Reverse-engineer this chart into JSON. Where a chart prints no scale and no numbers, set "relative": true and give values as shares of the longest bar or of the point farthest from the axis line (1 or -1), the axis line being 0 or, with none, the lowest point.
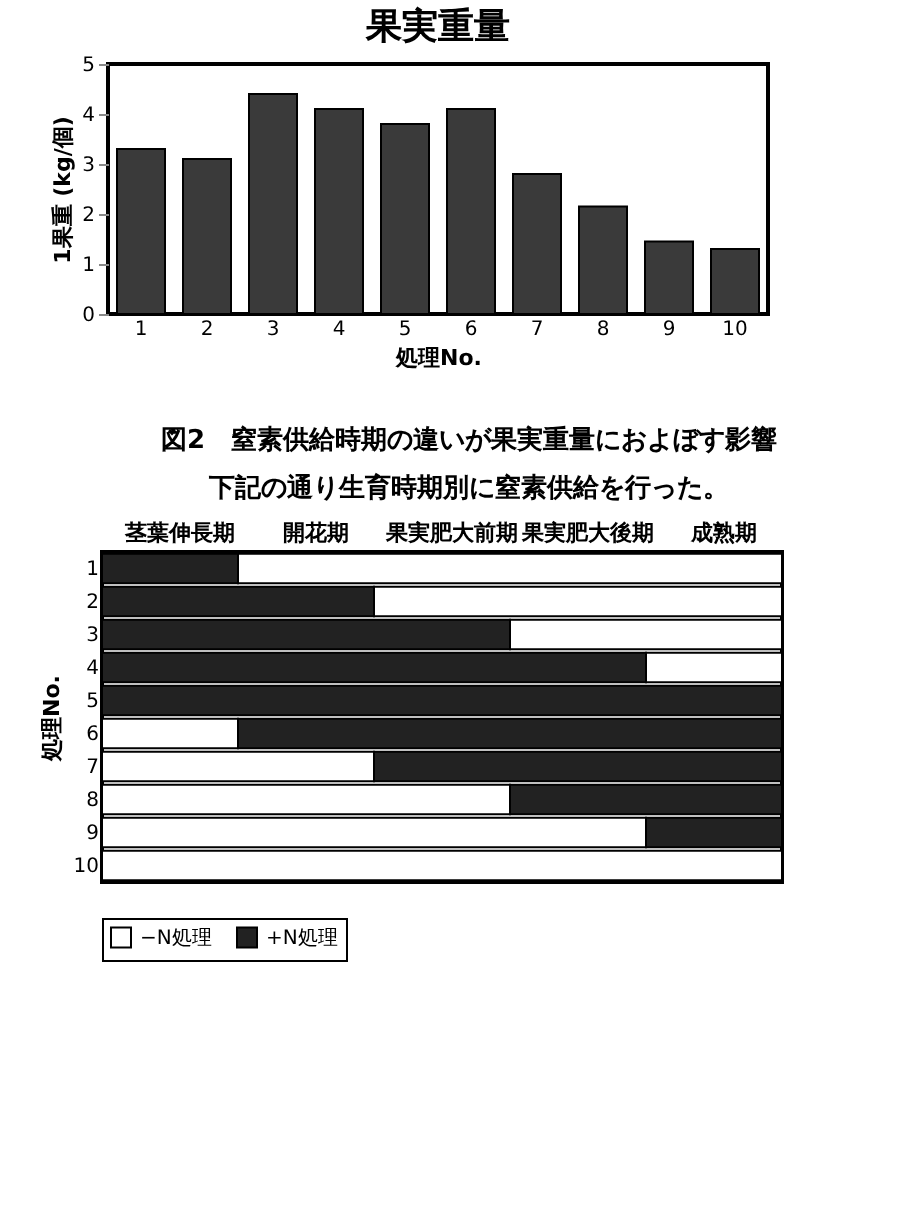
{
  "chart_data": [
    {
      "type": "bar",
      "title": "果実重量",
      "xlabel": "処理No.",
      "ylabel": "1果重 (kg/個)",
      "categories": [
        "1",
        "2",
        "3",
        "4",
        "5",
        "6",
        "7",
        "8",
        "9",
        "10"
      ],
      "values": [
        3.3,
        3.1,
        4.4,
        4.1,
        3.8,
        4.1,
        2.8,
        2.15,
        1.45,
        1.3
      ],
      "color": "#3a3a3a",
      "ylim": [
        0,
        5
      ],
      "yticks": [
        0,
        1,
        2,
        3,
        4,
        5
      ],
      "annotations": [
        "図2　窒素供給時期の違いが果実重量におよぼす影響"
      ]
    },
    {
      "type": "bar",
      "orientation": "horizontal",
      "stacked": true,
      "title": "下記の通り生育時期別に窒素供給を行った。",
      "ylabel": "処理No.",
      "categories": [
        "1",
        "2",
        "3",
        "4",
        "5",
        "6",
        "7",
        "8",
        "9",
        "10"
      ],
      "series": [
        {
          "name": "−N処理",
          "color": "#ffffff",
          "values": [
            0,
            0,
            0,
            0,
            0,
            0.2,
            0.4,
            0.6,
            0.8,
            1
          ]
        },
        {
          "name": "+N処理",
          "color": "#222222",
          "values": [
            0.2,
            0.4,
            0.6,
            0.8,
            1,
            0.8,
            0.6,
            0.4,
            0.2,
            0
          ]
        },
        {
          "color": "#ffffff",
          "values": [
            0.8,
            0.6,
            0.4,
            0.2,
            0,
            0,
            0,
            0,
            0,
            0
          ]
        }
      ],
      "relative": true,
      "annotations": [
        "茎葉伸長期",
        "開花期",
        "果実肥大前期",
        "果実肥大後期",
        "成熟期"
      ],
      "legend": "bottom"
    }
  ]
}
